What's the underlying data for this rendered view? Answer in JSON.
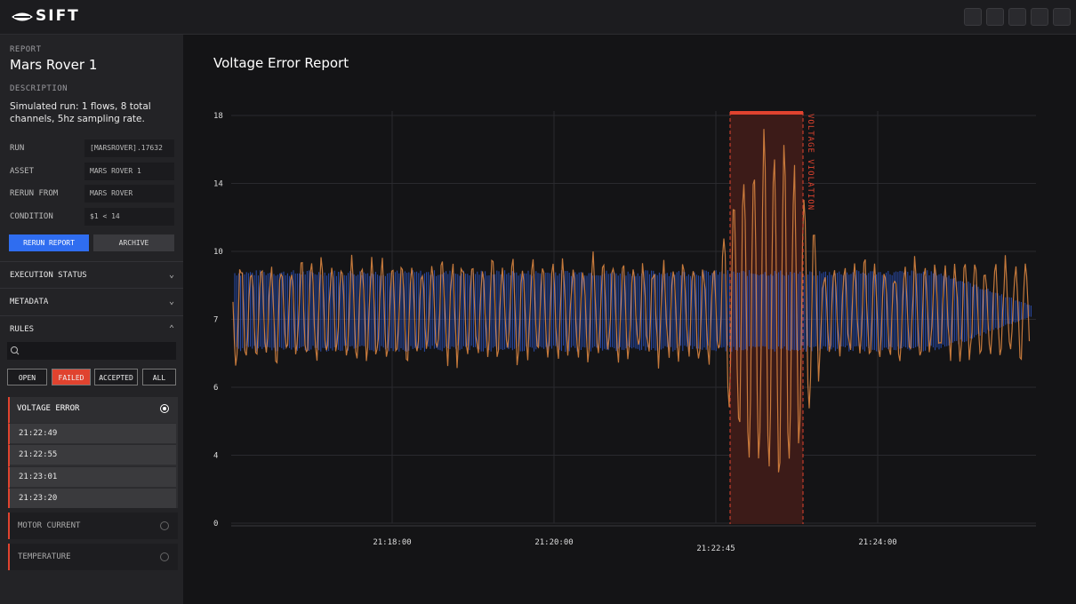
{
  "header": {
    "brand": "SIFT"
  },
  "sidebar": {
    "report_label": "REPORT",
    "report_name": "Mars Rover 1",
    "description_label": "DESCRIPTION",
    "description": "Simulated run: 1 flows, 8 total channels, 5hz sampling rate.",
    "fields": [
      {
        "label": "RUN",
        "value": "[MARSROVER].17632"
      },
      {
        "label": "ASSET",
        "value": "MARS ROVER 1"
      },
      {
        "label": "RERUN FROM",
        "value": "MARS ROVER"
      },
      {
        "label": "CONDITION",
        "value": "$1 < 14"
      }
    ],
    "buttons": [
      "RERUN REPORT",
      "ARCHIVE"
    ],
    "sections": [
      "EXECUTION STATUS",
      "METADATA",
      "RULES"
    ],
    "filters": [
      "OPEN",
      "FAILED",
      "ACCEPTED",
      "ALL"
    ],
    "rules": [
      {
        "name": "VOLTAGE ERROR",
        "items": [
          "21:22:49",
          "21:22:55",
          "21:23:01",
          "21:23:20"
        ]
      },
      {
        "name": "MOTOR CURRENT"
      },
      {
        "name": "TEMPERATURE"
      }
    ]
  },
  "main": {
    "title": "Voltage Error Report",
    "y_tick_labels": [
      "18",
      "14",
      "10",
      "7",
      "6",
      "4",
      "0"
    ],
    "x_tick_labels": [
      "21:18:00",
      "21:20:00",
      "21:22:45",
      "21:24:00"
    ],
    "annotation": "VOLTAGE VIOLATION"
  }
}
